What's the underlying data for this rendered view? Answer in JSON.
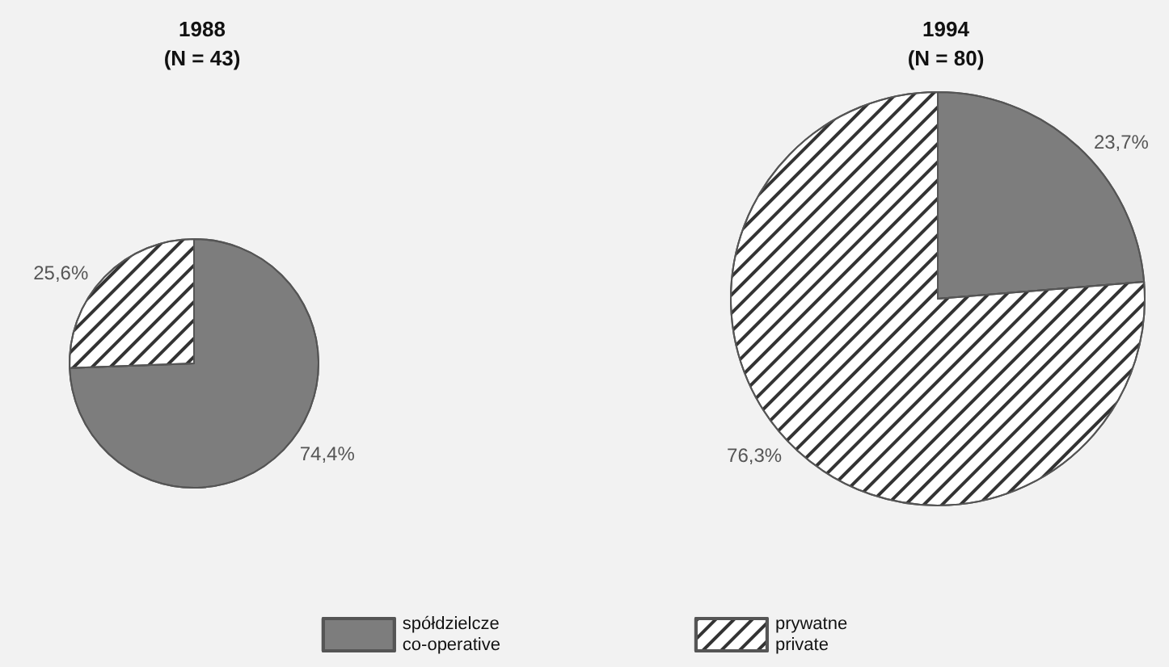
{
  "chart_data": {
    "type": "pie",
    "categories": [
      "spółdzielcze\nco-operative",
      "prywatne\nprivate"
    ],
    "colors": [
      "#7d7d7d",
      "#ffffff"
    ],
    "legend": "bottom",
    "series": [
      {
        "name": "1988\n(N = 43)",
        "values": [
          74.4,
          25.6
        ],
        "value_labels": [
          "74,4%",
          "25,6%"
        ]
      },
      {
        "name": "1994\n(N = 80)",
        "values": [
          23.7,
          76.3
        ],
        "value_labels": [
          "23,7%",
          "76,3%"
        ]
      }
    ]
  }
}
